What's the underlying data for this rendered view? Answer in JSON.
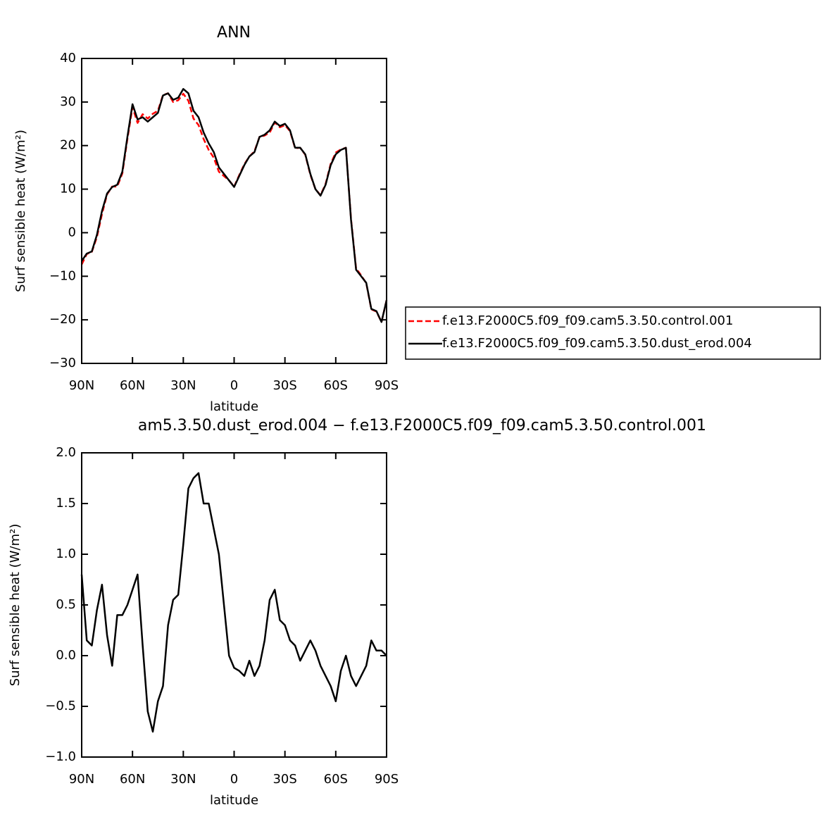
{
  "chart_data": [
    {
      "type": "line",
      "title": "ANN",
      "xlabel": "latitude",
      "ylabel": "Surf sensible heat (W/m²)",
      "xlim": [
        90,
        -90
      ],
      "ylim": [
        -30,
        40
      ],
      "xticks": [
        {
          "value": 90,
          "label": "90N"
        },
        {
          "value": 60,
          "label": "60N"
        },
        {
          "value": 30,
          "label": "30N"
        },
        0,
        {
          "value": -30,
          "label": "30S"
        },
        {
          "value": -60,
          "label": "60S"
        },
        {
          "value": -90,
          "label": "90S"
        }
      ],
      "yticks": [
        {
          "value": -30,
          "label": "−30"
        },
        {
          "value": -20,
          "label": "−20"
        },
        {
          "value": -10,
          "label": "−10"
        },
        0,
        10,
        20,
        30,
        40
      ],
      "legend": "outside-right",
      "x": [
        90,
        87,
        84,
        81,
        78,
        75,
        72,
        69,
        66,
        63,
        60,
        57,
        54,
        51,
        48,
        45,
        42,
        39,
        36,
        33,
        30,
        27,
        24,
        21,
        18,
        15,
        12,
        9,
        6,
        3,
        0,
        -3,
        -6,
        -9,
        -12,
        -15,
        -18,
        -21,
        -24,
        -27,
        -30,
        -33,
        -36,
        -39,
        -42,
        -45,
        -48,
        -51,
        -54,
        -57,
        -60,
        -63,
        -66,
        -69,
        -72,
        -75,
        -78,
        -81,
        -84,
        -87,
        -90
      ],
      "series": [
        {
          "name": "f.e13.F2000C5.f09_f09.cam5.3.50.control.001",
          "color": "#ff0000",
          "dash": true,
          "values": [
            -7.3,
            -4.9,
            -4.4,
            -1,
            4.3,
            8.8,
            10.6,
            10.6,
            13.6,
            21.5,
            28.8,
            25.2,
            27.2,
            26.2,
            27.3,
            28,
            31.6,
            32,
            30,
            30.4,
            31.9,
            30.3,
            26.2,
            24.7,
            21.5,
            19,
            17.2,
            14,
            13,
            12,
            10.6,
            13.2,
            15.7,
            17.5,
            18.7,
            22,
            22.3,
            23,
            25.3,
            24.2,
            24.7,
            23.3,
            19.4,
            19.5,
            17.9,
            13.3,
            10,
            8.6,
            11.2,
            15.8,
            18.4,
            19.1,
            19.5,
            3.2,
            -8.2,
            -9.8,
            -11.6,
            -17.6,
            -18.1,
            -20.5,
            -15.5
          ]
        },
        {
          "name": "f.e13.F2000C5.f09_f09.cam5.3.50.dust_erod.004",
          "color": "#000000",
          "dash": false,
          "values": [
            -6.5,
            -4.8,
            -4.3,
            -0.5,
            5,
            9,
            10.5,
            11,
            14,
            22,
            29.5,
            26,
            26.5,
            25.5,
            26.5,
            27.5,
            31.5,
            32,
            30.5,
            31,
            33,
            32,
            28,
            26.5,
            23,
            20.5,
            18.5,
            15,
            13.5,
            12,
            10.5,
            13,
            15.5,
            17.5,
            18.5,
            22,
            22.5,
            23.5,
            25.5,
            24.5,
            25,
            23.5,
            19.5,
            19.5,
            18,
            13.5,
            10,
            8.5,
            11,
            15.5,
            18,
            19,
            19.5,
            3,
            -8.5,
            -10,
            -11.5,
            -17.5,
            -18,
            -20.5,
            -15.5
          ]
        }
      ]
    },
    {
      "type": "line",
      "title": "am5.3.50.dust_erod.004 − f.e13.F2000C5.f09_f09.cam5.3.50.control.001",
      "xlabel": "latitude",
      "ylabel": "Surf sensible heat (W/m²)",
      "xlim": [
        90,
        -90
      ],
      "ylim": [
        -1,
        2
      ],
      "xticks": [
        {
          "value": 90,
          "label": "90N"
        },
        {
          "value": 60,
          "label": "60N"
        },
        {
          "value": 30,
          "label": "30N"
        },
        0,
        {
          "value": -30,
          "label": "30S"
        },
        {
          "value": -60,
          "label": "60S"
        },
        {
          "value": -90,
          "label": "90S"
        }
      ],
      "yticks": [
        {
          "value": -1,
          "label": "−1.0"
        },
        {
          "value": -0.5,
          "label": "−0.5"
        },
        {
          "value": 0,
          "label": "0.0"
        },
        0.5,
        {
          "value": 1,
          "label": "1.0"
        },
        1.5,
        {
          "value": 2,
          "label": "2.0"
        }
      ],
      "x": [
        90,
        87,
        84,
        81,
        78,
        75,
        72,
        69,
        66,
        63,
        60,
        57,
        54,
        51,
        48,
        45,
        42,
        39,
        36,
        33,
        30,
        27,
        24,
        21,
        18,
        15,
        12,
        9,
        6,
        3,
        0,
        -3,
        -6,
        -9,
        -12,
        -15,
        -18,
        -21,
        -24,
        -27,
        -30,
        -33,
        -36,
        -39,
        -42,
        -45,
        -48,
        -51,
        -54,
        -57,
        -60,
        -63,
        -66,
        -69,
        -72,
        -75,
        -78,
        -81,
        -84,
        -87,
        -90
      ],
      "series": [
        {
          "color": "#000000",
          "dash": false,
          "values": [
            0.8,
            0.15,
            0.1,
            0.45,
            0.7,
            0.2,
            -0.1,
            0.4,
            0.4,
            0.5,
            0.65,
            0.8,
            0.1,
            -0.55,
            -0.75,
            -0.45,
            -0.3,
            0.3,
            0.55,
            0.6,
            1.1,
            1.65,
            1.75,
            1.8,
            1.5,
            1.5,
            1.25,
            1.0,
            0.5,
            0.0,
            -0.12,
            -0.15,
            -0.2,
            -0.05,
            -0.2,
            -0.1,
            0.15,
            0.55,
            0.65,
            0.35,
            0.3,
            0.15,
            0.1,
            -0.05,
            0.05,
            0.15,
            0.05,
            -0.1,
            -0.2,
            -0.3,
            -0.45,
            -0.15,
            0.0,
            -0.2,
            -0.3,
            -0.2,
            -0.1,
            0.15,
            0.05,
            0.05,
            0.0
          ]
        }
      ]
    }
  ]
}
